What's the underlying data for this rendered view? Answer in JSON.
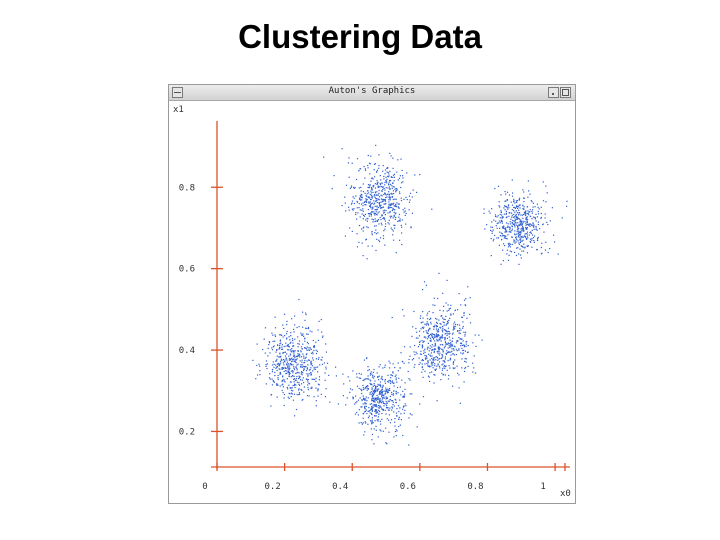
{
  "slide": {
    "title": "Clustering Data"
  },
  "window": {
    "title": "Auton's Graphics"
  },
  "colors": {
    "axis": "#d9532c",
    "points": "#2f5fd0",
    "text": "#333333"
  },
  "chart_data": {
    "type": "scatter",
    "title": "",
    "xlabel": "x0",
    "ylabel": "x1",
    "xlim": [
      0,
      1.05
    ],
    "ylim": [
      0.12,
      0.98
    ],
    "x_ticks": [
      0,
      0.2,
      0.4,
      0.6,
      0.8,
      1
    ],
    "x_tick_labels": [
      "0",
      "0.2",
      "0.4",
      "0.6",
      "0.8",
      "1"
    ],
    "y_ticks": [
      0.2,
      0.4,
      0.6,
      0.8
    ],
    "y_tick_labels": [
      "0.2",
      "0.4",
      "0.6",
      "0.8"
    ],
    "grid": false,
    "clusters": [
      {
        "center": [
          0.48,
          0.77
        ],
        "spread": 0.045,
        "n": 550
      },
      {
        "center": [
          0.89,
          0.71
        ],
        "spread": 0.04,
        "n": 500
      },
      {
        "center": [
          0.23,
          0.37
        ],
        "spread": 0.045,
        "n": 550
      },
      {
        "center": [
          0.48,
          0.28
        ],
        "spread": 0.04,
        "n": 500
      },
      {
        "center": [
          0.66,
          0.42
        ],
        "spread": 0.045,
        "n": 550
      }
    ]
  }
}
